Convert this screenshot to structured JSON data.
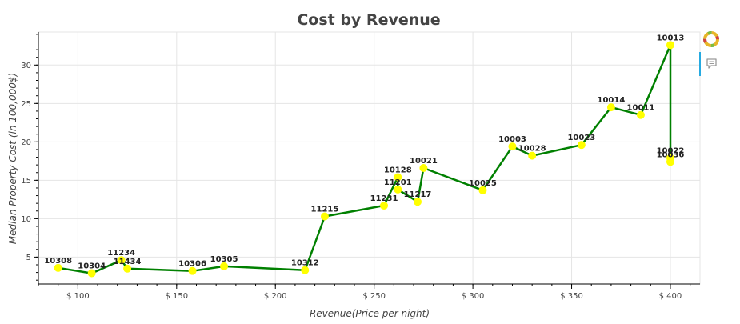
{
  "chart_data": {
    "type": "line",
    "title": "Cost by Revenue",
    "xlabel": "Revenue(Price per night)",
    "ylabel": "Median Property Cost (in 100,000$)",
    "xlim": [
      80,
      415
    ],
    "ylim": [
      1.5,
      34.3
    ],
    "x_ticks": [
      {
        "value": 100,
        "label": "$ 100"
      },
      {
        "value": 150,
        "label": "$ 150"
      },
      {
        "value": 200,
        "label": "$ 200"
      },
      {
        "value": 250,
        "label": "$ 250"
      },
      {
        "value": 300,
        "label": "$ 300"
      },
      {
        "value": 350,
        "label": "$ 350"
      },
      {
        "value": 400,
        "label": "$ 400"
      }
    ],
    "y_ticks": [
      {
        "value": 5,
        "label": "5"
      },
      {
        "value": 10,
        "label": "10"
      },
      {
        "value": 15,
        "label": "15"
      },
      {
        "value": 20,
        "label": "20"
      },
      {
        "value": 25,
        "label": "25"
      },
      {
        "value": 30,
        "label": "30"
      }
    ],
    "grid": true,
    "line_color": "#008000",
    "marker_color": "#ffff00",
    "points": [
      {
        "x": 90,
        "y": 3.6,
        "label": "10308"
      },
      {
        "x": 107,
        "y": 2.9,
        "label": "10304"
      },
      {
        "x": 122,
        "y": 4.6,
        "label": "11234"
      },
      {
        "x": 125,
        "y": 3.5,
        "label": "11434"
      },
      {
        "x": 158,
        "y": 3.2,
        "label": "10306"
      },
      {
        "x": 174,
        "y": 3.8,
        "label": "10305"
      },
      {
        "x": 215,
        "y": 3.3,
        "label": "10312"
      },
      {
        "x": 225,
        "y": 10.3,
        "label": "11215"
      },
      {
        "x": 255,
        "y": 11.7,
        "label": "11231"
      },
      {
        "x": 262,
        "y": 15.4,
        "label": "10128"
      },
      {
        "x": 262,
        "y": 13.8,
        "label": "11201"
      },
      {
        "x": 272,
        "y": 12.2,
        "label": "11217"
      },
      {
        "x": 275,
        "y": 16.6,
        "label": "10021"
      },
      {
        "x": 305,
        "y": 13.7,
        "label": "10025"
      },
      {
        "x": 320,
        "y": 19.4,
        "label": "10003"
      },
      {
        "x": 330,
        "y": 18.2,
        "label": "10028"
      },
      {
        "x": 355,
        "y": 19.6,
        "label": "10023"
      },
      {
        "x": 370,
        "y": 24.5,
        "label": "10014"
      },
      {
        "x": 385,
        "y": 23.5,
        "label": "10011"
      },
      {
        "x": 400,
        "y": 32.6,
        "label": "10013"
      },
      {
        "x": 400,
        "y": 17.9,
        "label": "10022"
      },
      {
        "x": 400,
        "y": 17.4,
        "label": "10036"
      }
    ]
  },
  "toolbar": {
    "logo_icon": "bokeh-logo-icon",
    "hover_icon": "hover-tooltip-icon"
  }
}
